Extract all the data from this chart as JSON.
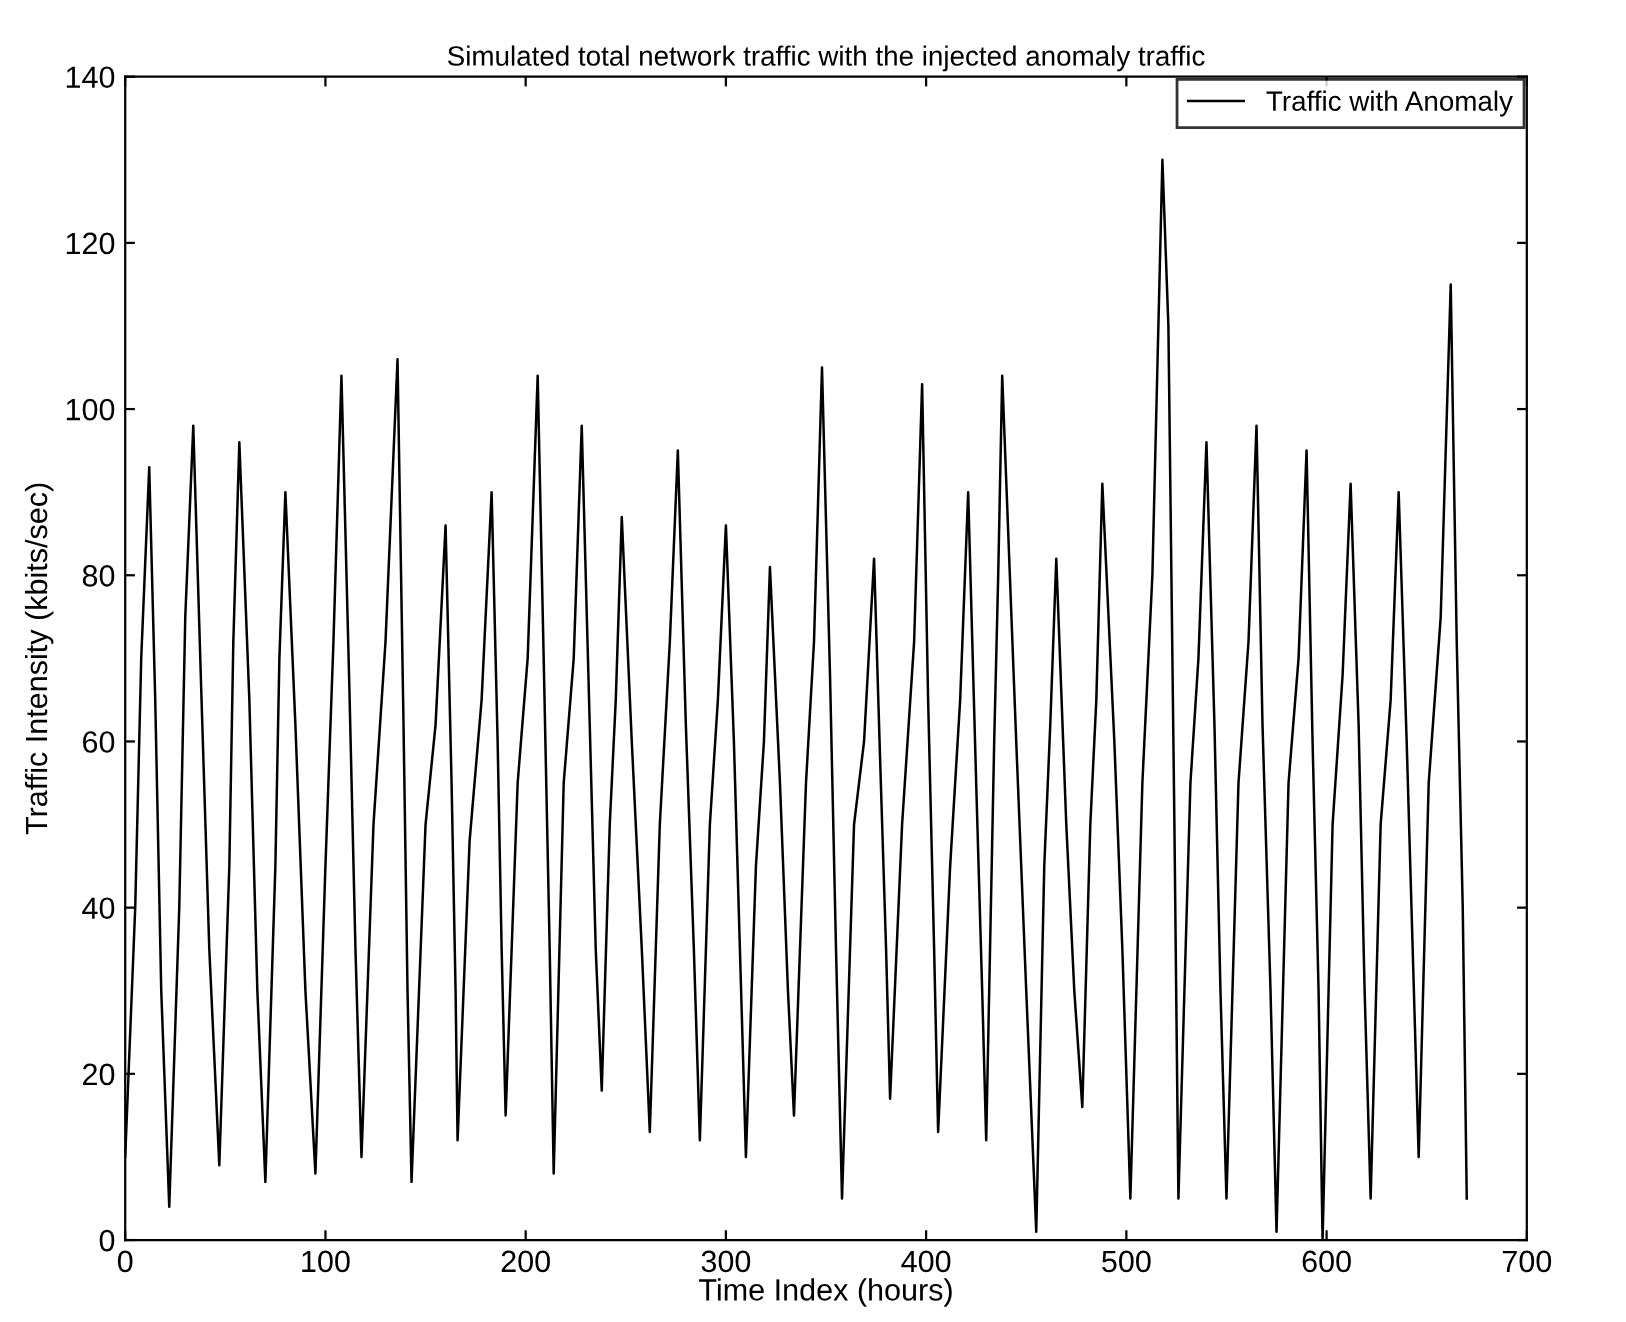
{
  "chart_data": {
    "type": "line",
    "title": "Simulated total network traffic with the injected anomaly traffic",
    "xlabel": "Time Index (hours)",
    "ylabel": "Traffic Intensity (kbits/sec)",
    "xlim": [
      0,
      700
    ],
    "xticks": [
      0,
      100,
      200,
      300,
      400,
      500,
      600,
      700
    ],
    "ylim": [
      0,
      140
    ],
    "yticks": [
      0,
      20,
      40,
      60,
      80,
      100,
      120,
      140
    ],
    "grid": false,
    "legend": "top right",
    "marker": "none",
    "line_style": "solid",
    "series": [
      {
        "name": "Traffic with Anomaly",
        "color": "#000000",
        "x": [
          0,
          5,
          8,
          12,
          15,
          18,
          22,
          27,
          30,
          34,
          38,
          42,
          47,
          52,
          54,
          57,
          62,
          66,
          70,
          75,
          77,
          80,
          85,
          90,
          95,
          100,
          104,
          108,
          112,
          115,
          118,
          124,
          130,
          136,
          139,
          141,
          143,
          150,
          155,
          160,
          163,
          165,
          166,
          172,
          178,
          183,
          186,
          188,
          190,
          196,
          201,
          206,
          209,
          212,
          214,
          219,
          224,
          228,
          232,
          235,
          238,
          242,
          245,
          248,
          253,
          258,
          262,
          267,
          272,
          276,
          280,
          284,
          287,
          292,
          296,
          300,
          304,
          307,
          310,
          315,
          319,
          322,
          327,
          331,
          334,
          340,
          344,
          348,
          352,
          355,
          358,
          364,
          369,
          374,
          377,
          380,
          382,
          388,
          394,
          398,
          401,
          404,
          406,
          412,
          417,
          421,
          425,
          428,
          430,
          434,
          436,
          438,
          445,
          450,
          455,
          459,
          462,
          465,
          470,
          474,
          478,
          482,
          485,
          488,
          494,
          498,
          502,
          508,
          513,
          518,
          521,
          524,
          526,
          532,
          536,
          540,
          544,
          547,
          550,
          556,
          561,
          565,
          568,
          572,
          575,
          581,
          586,
          590,
          593,
          596,
          598,
          603,
          608,
          612,
          616,
          619,
          622,
          627,
          632,
          636,
          640,
          643,
          646,
          651,
          657,
          662,
          665,
          668,
          670
        ],
        "values": [
          10,
          40,
          70,
          93,
          65,
          30,
          4,
          40,
          75,
          98,
          66,
          35,
          9,
          45,
          72,
          96,
          65,
          30,
          7,
          45,
          70,
          90,
          62,
          30,
          8,
          45,
          72,
          104,
          66,
          35,
          10,
          50,
          72,
          106,
          62,
          30,
          7,
          50,
          62,
          86,
          55,
          30,
          12,
          48,
          65,
          90,
          60,
          35,
          15,
          55,
          70,
          104,
          70,
          35,
          8,
          55,
          70,
          98,
          62,
          35,
          18,
          50,
          65,
          87,
          60,
          35,
          13,
          50,
          72,
          95,
          62,
          35,
          12,
          50,
          65,
          86,
          60,
          35,
          10,
          45,
          60,
          81,
          55,
          30,
          15,
          55,
          72,
          105,
          68,
          35,
          5,
          50,
          60,
          82,
          58,
          35,
          17,
          50,
          72,
          103,
          65,
          35,
          13,
          45,
          65,
          90,
          55,
          30,
          12,
          60,
          80,
          104,
          60,
          30,
          1,
          45,
          62,
          82,
          50,
          30,
          16,
          50,
          65,
          91,
          60,
          35,
          5,
          55,
          80,
          130,
          110,
          50,
          5,
          55,
          70,
          96,
          62,
          30,
          5,
          55,
          72,
          98,
          62,
          30,
          1,
          55,
          70,
          95,
          60,
          30,
          0,
          50,
          68,
          91,
          62,
          30,
          5,
          50,
          65,
          90,
          60,
          35,
          10,
          55,
          75,
          115,
          72,
          40,
          5
        ]
      }
    ]
  }
}
